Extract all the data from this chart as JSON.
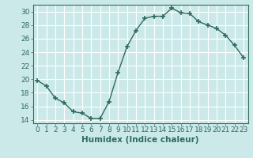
{
  "x": [
    0,
    1,
    2,
    3,
    4,
    5,
    6,
    7,
    8,
    9,
    10,
    11,
    12,
    13,
    14,
    15,
    16,
    17,
    18,
    19,
    20,
    21,
    22,
    23
  ],
  "y": [
    19.8,
    19.0,
    17.2,
    16.5,
    15.2,
    15.0,
    14.2,
    14.2,
    16.7,
    21.0,
    24.8,
    27.2,
    29.0,
    29.3,
    29.3,
    30.5,
    29.8,
    29.7,
    28.5,
    28.0,
    27.5,
    26.5,
    25.0,
    23.2
  ],
  "line_color": "#2e6b5e",
  "marker": "+",
  "marker_size": 4,
  "marker_linewidth": 1.2,
  "bg_color": "#cce9ea",
  "grid_color": "#ffffff",
  "xlabel": "Humidex (Indice chaleur)",
  "xlim": [
    -0.5,
    23.5
  ],
  "ylim": [
    13.5,
    31
  ],
  "yticks": [
    14,
    16,
    18,
    20,
    22,
    24,
    26,
    28,
    30
  ],
  "xticks": [
    0,
    1,
    2,
    3,
    4,
    5,
    6,
    7,
    8,
    9,
    10,
    11,
    12,
    13,
    14,
    15,
    16,
    17,
    18,
    19,
    20,
    21,
    22,
    23
  ],
  "tick_color": "#2e6b5e",
  "label_color": "#2e6b5e",
  "xlabel_fontsize": 7.5,
  "tick_fontsize": 6.5,
  "line_width": 1.0
}
